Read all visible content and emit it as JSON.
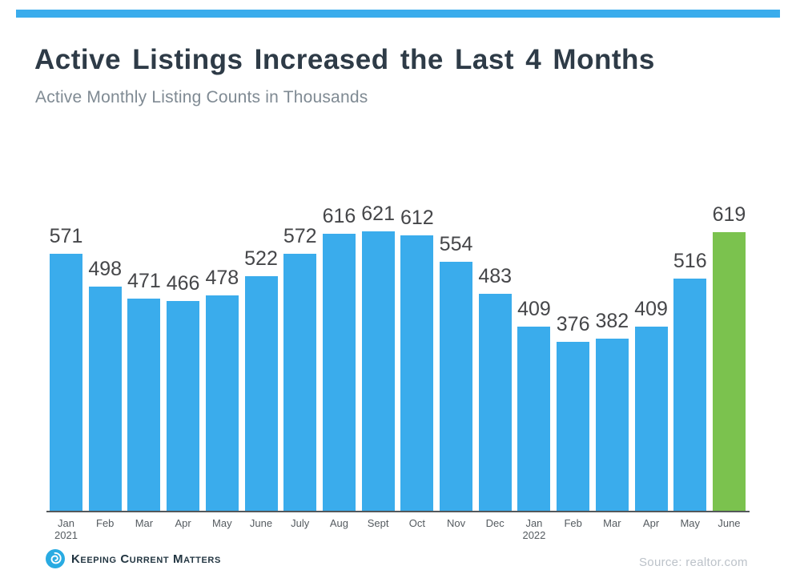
{
  "page": {
    "title": "Active Listings Increased the Last 4 Months",
    "subtitle": "Active Monthly Listing Counts in Thousands",
    "source": "Source: realtor.com",
    "logo_text": "Keeping Current Matters"
  },
  "colors": {
    "bar_blue": "#3AACEC",
    "bar_green": "#7BC24E",
    "accent_bar": "#3AACEC",
    "title": "#2E3B47",
    "subtitle": "#7F8A93",
    "value_label": "#454649",
    "tick_label": "#555B60",
    "axis_line": "#54585B",
    "source_text": "#BCC2C9",
    "logo_blue": "#29ABE2"
  },
  "chart_data": {
    "type": "bar",
    "title": "Active Listings Increased the Last 4 Months",
    "subtitle": "Active Monthly Listing Counts in Thousands",
    "xlabel": "",
    "ylabel": "Active Monthly Listing Counts in Thousands",
    "ylim": [
      0,
      621
    ],
    "grid": false,
    "legend": null,
    "source": "Source: realtor.com",
    "categories": [
      {
        "month": "Jan",
        "year": "2021"
      },
      {
        "month": "Feb"
      },
      {
        "month": "Mar"
      },
      {
        "month": "Apr"
      },
      {
        "month": "May"
      },
      {
        "month": "June"
      },
      {
        "month": "July"
      },
      {
        "month": "Aug"
      },
      {
        "month": "Sept"
      },
      {
        "month": "Oct"
      },
      {
        "month": "Nov"
      },
      {
        "month": "Dec"
      },
      {
        "month": "Jan",
        "year": "2022"
      },
      {
        "month": "Feb"
      },
      {
        "month": "Mar"
      },
      {
        "month": "Apr"
      },
      {
        "month": "May"
      },
      {
        "month": "June"
      }
    ],
    "values": [
      571,
      498,
      471,
      466,
      478,
      522,
      572,
      616,
      621,
      612,
      554,
      483,
      409,
      376,
      382,
      409,
      516,
      619
    ],
    "highlight_index": 17,
    "highlight_color": "#7BC24E",
    "bar_color": "#3AACEC"
  }
}
